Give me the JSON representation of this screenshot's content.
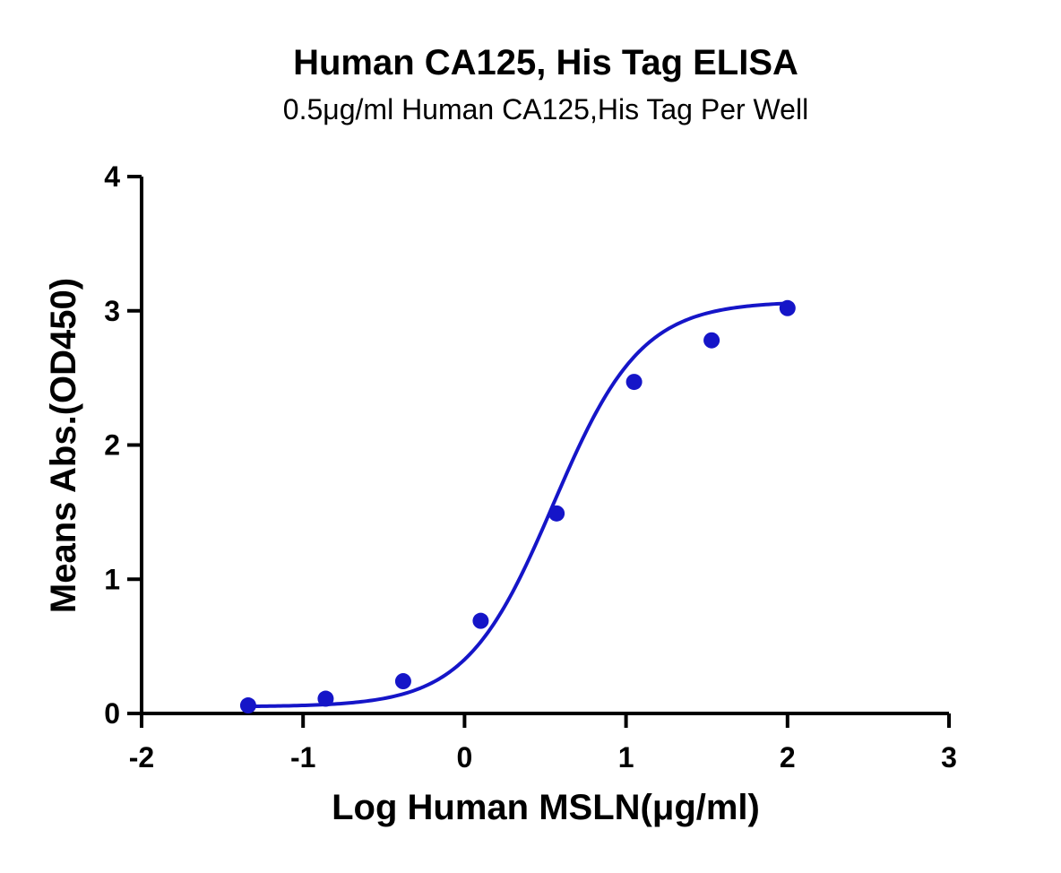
{
  "chart_data": {
    "type": "scatter",
    "title": "Human CA125, His Tag ELISA",
    "subtitle": "0.5μg/ml Human CA125,His Tag Per Well",
    "xlabel": "Log Human MSLN(μg/ml)",
    "ylabel": "Means Abs.(OD450)",
    "xlim": [
      -2,
      3
    ],
    "ylim": [
      0,
      4
    ],
    "xticks": [
      -2,
      -1,
      0,
      1,
      2,
      3
    ],
    "yticks": [
      0,
      1,
      2,
      3,
      4
    ],
    "grid": false,
    "legend": "none",
    "series": [
      {
        "x": [
          -1.34,
          -0.86,
          -0.38,
          0.1,
          0.57,
          1.05,
          1.53,
          2.0
        ],
        "y": [
          0.06,
          0.11,
          0.24,
          0.69,
          1.49,
          2.47,
          2.78,
          3.02
        ],
        "fit": {
          "model": "four-parameter logistic",
          "bottom": 0.05,
          "top": 3.07,
          "logEC50": 0.55,
          "hill": 1.6
        }
      }
    ],
    "colors": {
      "series": "#1515c8",
      "axis": "#000000"
    }
  }
}
